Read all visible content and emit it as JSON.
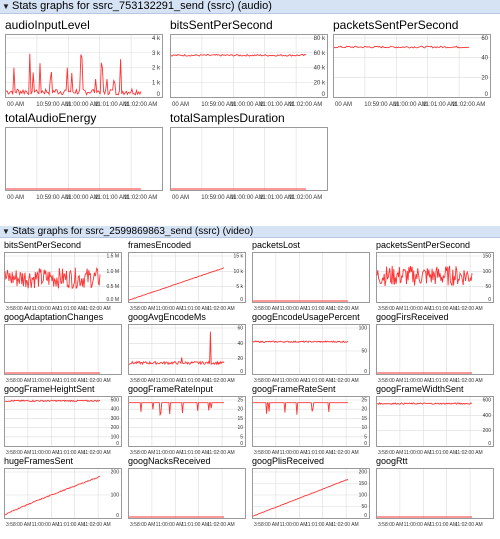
{
  "audio_section": {
    "label": "Stats graphs for ssrc_753132291_send (ssrc) (audio)",
    "graphs": [
      {
        "title": "audioInputLevel",
        "y_ticks": [
          "0",
          "1 k",
          "2 k",
          "3 k",
          "4 k"
        ],
        "x_ticks": [
          "00 AM",
          "10:59:00 AM",
          "11:00:00 AM",
          "11:01:00 AM",
          "11:02:00 AM"
        ],
        "series_shape": "spiky_low"
      },
      {
        "title": "bitsSentPerSecond",
        "y_ticks": [
          "0",
          "20 k",
          "40 k",
          "60 k",
          "80 k"
        ],
        "x_ticks": [
          "00 AM",
          "10:59:00 AM",
          "11:00:00 AM",
          "11:01:00 AM",
          "11:02:00 AM"
        ],
        "series_shape": "flat_high",
        "series_level": 0.69
      },
      {
        "title": "packetsSentPerSecond",
        "y_ticks": [
          "0",
          "20",
          "40",
          "60"
        ],
        "x_ticks": [
          "00 AM",
          "10:59:00 AM",
          "11:00:00 AM",
          "11:01:00 AM",
          "11:02:00 AM"
        ],
        "series_shape": "flat_high",
        "series_level": 0.83
      },
      {
        "title": "totalAudioEnergy",
        "y_ticks": [],
        "x_ticks": [
          "00 AM",
          "10:59:00 AM",
          "11:00:00 AM",
          "11:01:00 AM",
          "11:02:00 AM"
        ],
        "series_shape": "zero"
      },
      {
        "title": "totalSamplesDuration",
        "y_ticks": [],
        "x_ticks": [
          "00 AM",
          "10:59:00 AM",
          "11:00:00 AM",
          "11:01:00 AM",
          "11:02:00 AM"
        ],
        "series_shape": "zero"
      }
    ]
  },
  "video_section": {
    "label": "Stats graphs for ssrc_2599869863_send (ssrc) (video)",
    "graphs": [
      {
        "title": "bitsSentPerSecond",
        "y_ticks": [
          "0.0 M",
          "0.5 M",
          "1.0 M",
          "1.5 M"
        ],
        "x_ticks": [
          "3:58:00 AM",
          "11:00:00 AM",
          "11:01:00 AM",
          "11:02:00 AM"
        ],
        "series_shape": "noisy_mid",
        "series_level": 0.5
      },
      {
        "title": "framesEncoded",
        "y_ticks": [
          "0",
          "5 k",
          "10 k",
          "15 k"
        ],
        "x_ticks": [
          "3:58:00 AM",
          "11:00:00 AM",
          "11:01:00 AM",
          "11:02:00 AM"
        ],
        "series_shape": "rising",
        "series_level": 0.72
      },
      {
        "title": "packetsLost",
        "y_ticks": [],
        "x_ticks": [
          "3:58:00 AM",
          "11:00:00 AM",
          "11:01:00 AM",
          "11:02:00 AM"
        ],
        "series_shape": "zero"
      },
      {
        "title": "packetsSentPerSecond",
        "y_ticks": [
          "0",
          "50",
          "100",
          "150"
        ],
        "x_ticks": [
          "3:58:00 AM",
          "11:00:00 AM",
          "11:01:00 AM",
          "11:02:00 AM"
        ],
        "series_shape": "noisy_mid",
        "series_level": 0.55
      },
      {
        "title": "googAdaptationChanges",
        "y_ticks": [],
        "x_ticks": [
          "3:58:00 AM",
          "11:00:00 AM",
          "11:01:00 AM",
          "11:02:00 AM"
        ],
        "series_shape": "zero"
      },
      {
        "title": "googAvgEncodeMs",
        "y_ticks": [
          "0",
          "20",
          "40",
          "60"
        ],
        "x_ticks": [
          "3:58:00 AM",
          "11:00:00 AM",
          "11:01:00 AM",
          "11:02:00 AM"
        ],
        "series_shape": "low_with_spike",
        "series_level": 0.22
      },
      {
        "title": "googEncodeUsagePercent",
        "y_ticks": [
          "0",
          "50",
          "100"
        ],
        "x_ticks": [
          "3:58:00 AM",
          "11:00:00 AM",
          "11:01:00 AM",
          "11:02:00 AM"
        ],
        "series_shape": "flat_high",
        "series_level": 0.68
      },
      {
        "title": "googFirsReceived",
        "y_ticks": [],
        "x_ticks": [
          "3:58:00 AM",
          "11:00:00 AM",
          "11:01:00 AM",
          "11:02:00 AM"
        ],
        "series_shape": "zero"
      },
      {
        "title": "googFrameHeightSent",
        "y_ticks": [
          "0",
          "100",
          "200",
          "300",
          "400",
          "500"
        ],
        "x_ticks": [
          "3:58:00 AM",
          "11:00:00 AM",
          "11:01:00 AM",
          "11:02:00 AM"
        ],
        "series_shape": "flat_high",
        "series_level": 0.96
      },
      {
        "title": "googFrameRateInput",
        "y_ticks": [
          "0",
          "5",
          "10",
          "15",
          "20",
          "25"
        ],
        "x_ticks": [
          "3:58:00 AM",
          "11:00:00 AM",
          "11:01:00 AM",
          "11:02:00 AM"
        ],
        "series_shape": "flat_dips",
        "series_level": 0.92
      },
      {
        "title": "googFrameRateSent",
        "y_ticks": [
          "0",
          "5",
          "10",
          "15",
          "20",
          "25"
        ],
        "x_ticks": [
          "3:58:00 AM",
          "11:00:00 AM",
          "11:01:00 AM",
          "11:02:00 AM"
        ],
        "series_shape": "flat_dips",
        "series_level": 0.92
      },
      {
        "title": "googFrameWidthSent",
        "y_ticks": [
          "0",
          "200",
          "400",
          "600"
        ],
        "x_ticks": [
          "3:58:00 AM",
          "11:00:00 AM",
          "11:01:00 AM",
          "11:02:00 AM"
        ],
        "series_shape": "flat_high",
        "series_level": 0.9
      },
      {
        "title": "hugeFramesSent",
        "y_ticks": [
          "0",
          "100",
          "200"
        ],
        "x_ticks": [
          "3:58:00 AM",
          "11:00:00 AM",
          "11:01:00 AM",
          "11:02:00 AM"
        ],
        "series_shape": "rising_curve",
        "series_level": 0.88
      },
      {
        "title": "googNacksReceived",
        "y_ticks": [],
        "x_ticks": [
          "3:58:00 AM",
          "11:00:00 AM",
          "11:01:00 AM",
          "11:02:00 AM"
        ],
        "series_shape": "zero"
      },
      {
        "title": "googPlisReceived",
        "y_ticks": [
          "0",
          "50",
          "100",
          "150",
          "200"
        ],
        "x_ticks": [
          "3:58:00 AM",
          "11:00:00 AM",
          "11:01:00 AM",
          "11:02:00 AM"
        ],
        "series_shape": "rising",
        "series_level": 0.82
      },
      {
        "title": "googRtt",
        "y_ticks": [],
        "x_ticks": [
          "3:58:00 AM",
          "11:00:00 AM",
          "11:01:00 AM",
          "11:02:00 AM"
        ],
        "series_shape": "zero"
      }
    ]
  },
  "colors": {
    "series": "#ff3333",
    "grid": "#dcdcdc",
    "border": "#9a9a9a",
    "header_bg": "#d6e3f5"
  }
}
